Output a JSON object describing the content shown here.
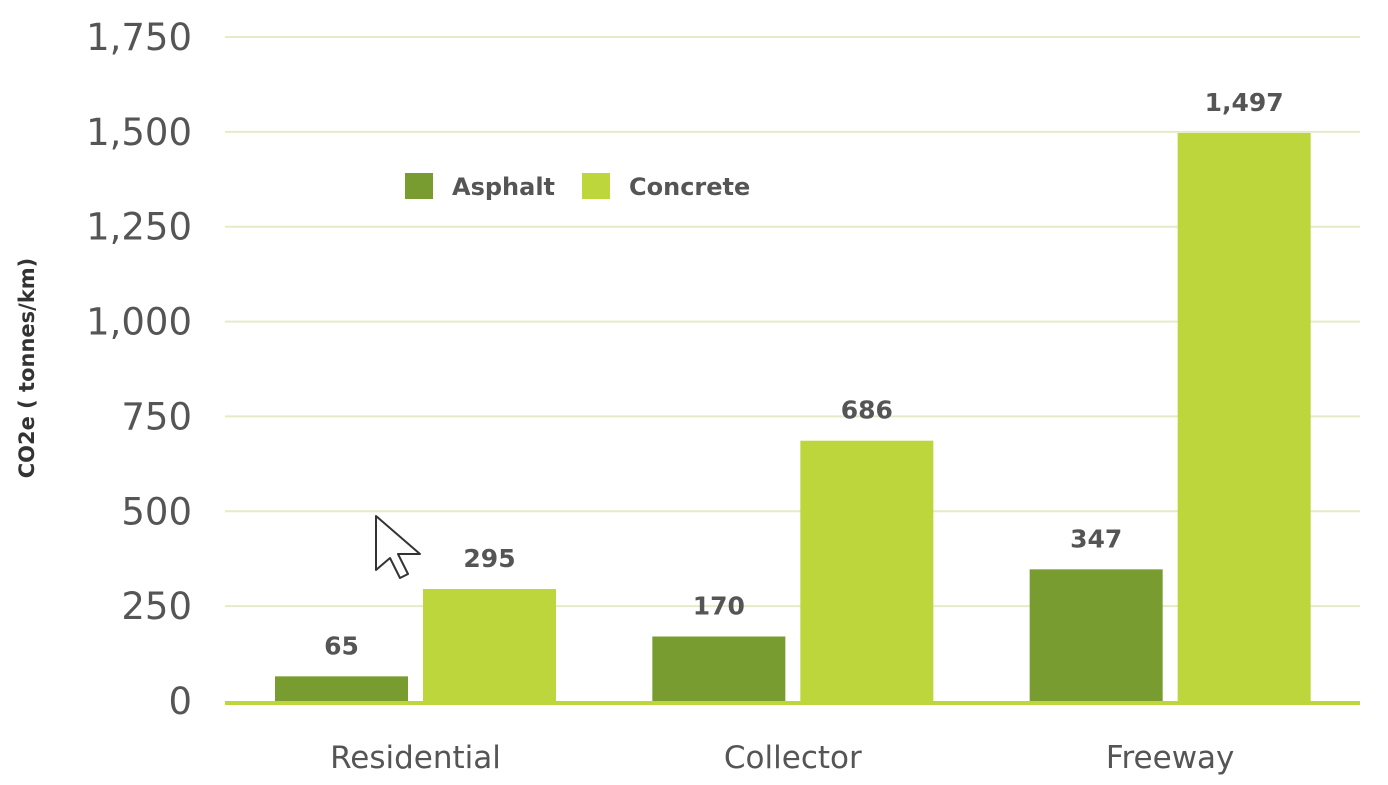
{
  "chart_data": {
    "type": "bar",
    "title": "",
    "xlabel": "",
    "ylabel": "CO2e ( tonnes/km)",
    "categories": [
      "Residential",
      "Collector",
      "Freeway"
    ],
    "series": [
      {
        "name": "Asphalt",
        "values": [
          65,
          170,
          347
        ],
        "labels": [
          "65",
          "170",
          "347"
        ],
        "color": "#789c2f"
      },
      {
        "name": "Concrete",
        "values": [
          295,
          686,
          1497
        ],
        "labels": [
          "295",
          "686",
          "1,497"
        ],
        "color": "#bcd63b"
      }
    ],
    "ylim": [
      0,
      1750
    ],
    "yticks": [
      0,
      250,
      500,
      750,
      1000,
      1250,
      1500,
      1750
    ],
    "ytick_labels": [
      "0",
      "250",
      "500",
      "750",
      "1,000",
      "1,250",
      "1,500",
      "1,750"
    ],
    "grid": true,
    "legend_position": "top-left",
    "colors": {
      "grid": "#e3ecc6",
      "baseline": "#bcd63b",
      "text": "#555555"
    }
  }
}
